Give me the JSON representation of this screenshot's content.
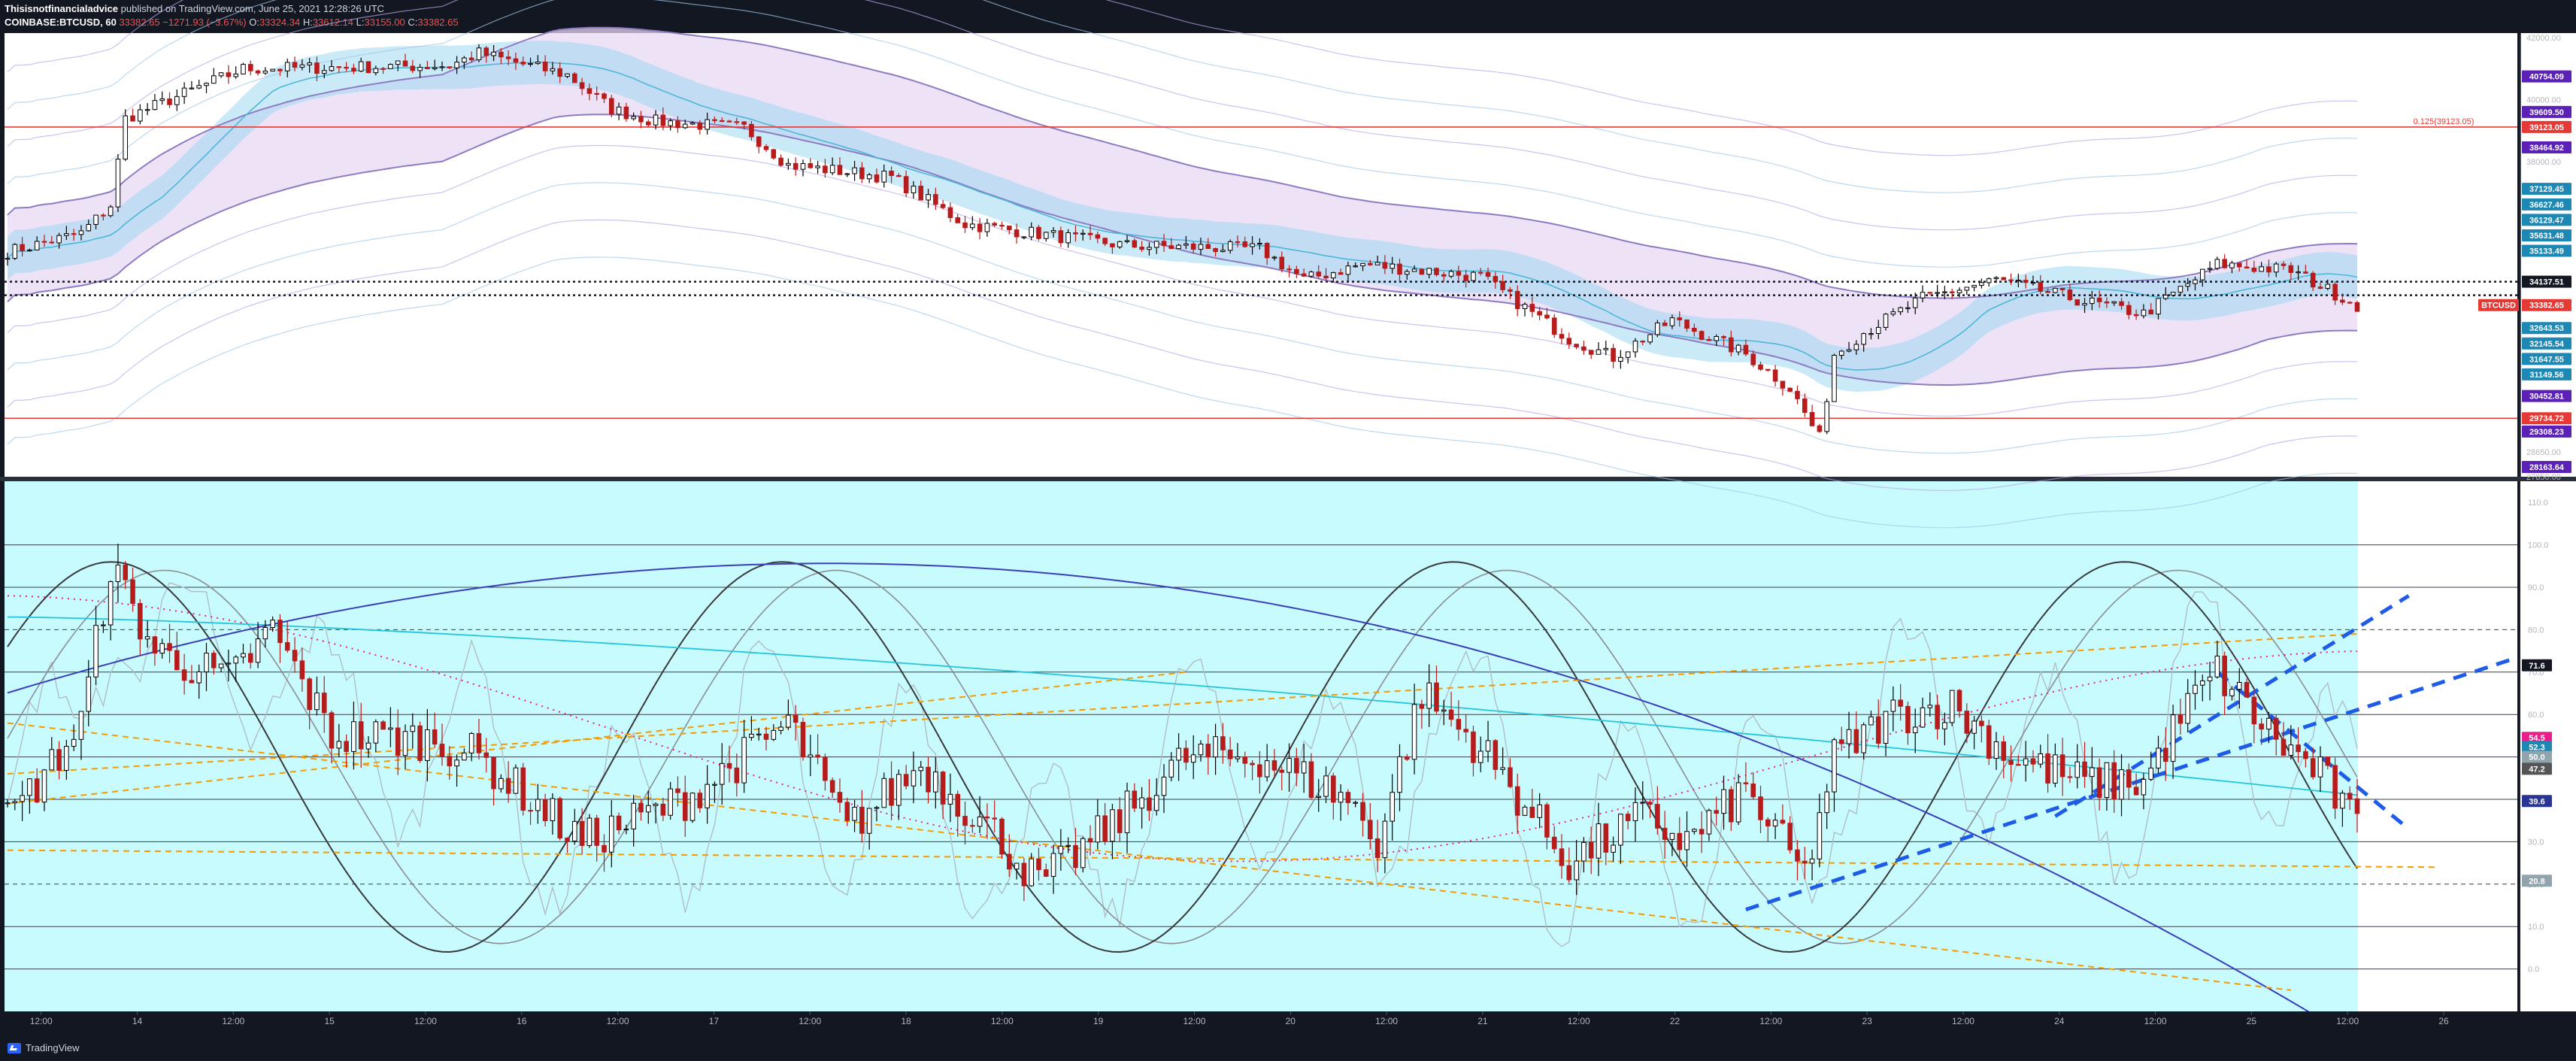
{
  "header": {
    "publisher": "Thisisnotfinancialadvice",
    "published_text": "published on TradingView.com, June 25, 2021 12:28:26 UTC",
    "symbol": "COINBASE:BTCUSD, 60",
    "last_price": "33382.65",
    "change": "−1271.93 (−3.67%)",
    "open_label": "O:",
    "open": "33324.34",
    "high_label": "H:",
    "high": "33612.14",
    "low_label": "L:",
    "low": "33155.00",
    "close_label": "C:",
    "close": "33382.65"
  },
  "footer": {
    "brand": "TradingView"
  },
  "colors": {
    "bg": "#131722",
    "upper_pane_bg": "#ffffff",
    "lower_pane_bg": "#c8fbfd",
    "up_candle": "#000000",
    "down_candle": "#b71c1c",
    "ribbon_fill": "#9fd8f0",
    "purple_band": "#e8d8f4",
    "red_hline": "#e53935",
    "orange_dash": "#f59b00",
    "blue_dash": "#1e5ce8",
    "navy_curve": "#3a3fb8"
  },
  "chart_data": [
    {
      "type": "candlestick",
      "pane": "price",
      "x_ticks": [
        "12:00",
        "14",
        "12:00",
        "15",
        "12:00",
        "16",
        "12:00",
        "17",
        "12:00",
        "18",
        "12:00",
        "19",
        "12:00",
        "20",
        "12:00",
        "21",
        "12:00",
        "22",
        "12:00",
        "23",
        "12:00",
        "24",
        "12:00",
        "25",
        "12:00",
        "26"
      ],
      "x_range_hours": [
        0,
        291
      ],
      "ylim": [
        27850,
        42150
      ],
      "y_ticks": [
        "42000.00",
        "40000.00",
        "38000.00",
        "28650.00",
        "27850.00"
      ],
      "symbol_label": "BTCUSD",
      "current_price": 33382.65,
      "close_keypoints": [
        [
          0,
          35100
        ],
        [
          10,
          35700
        ],
        [
          14,
          36600
        ],
        [
          16,
          39400
        ],
        [
          32,
          41000
        ],
        [
          60,
          41100
        ],
        [
          64,
          41500
        ],
        [
          76,
          40800
        ],
        [
          82,
          39700
        ],
        [
          88,
          39300
        ],
        [
          100,
          39100
        ],
        [
          106,
          37900
        ],
        [
          120,
          37500
        ],
        [
          130,
          36000
        ],
        [
          152,
          35300
        ],
        [
          170,
          35200
        ],
        [
          176,
          34200
        ],
        [
          184,
          34700
        ],
        [
          200,
          34300
        ],
        [
          212,
          32300
        ],
        [
          218,
          31700
        ],
        [
          226,
          32900
        ],
        [
          236,
          31800
        ],
        [
          242,
          30700
        ],
        [
          246,
          29100
        ],
        [
          248,
          31800
        ],
        [
          252,
          32500
        ],
        [
          260,
          33600
        ],
        [
          270,
          34200
        ],
        [
          282,
          33500
        ],
        [
          290,
          33100
        ],
        [
          300,
          34700
        ],
        [
          310,
          34500
        ],
        [
          319,
          33380
        ]
      ],
      "price_labels": [
        {
          "text": "40754.09",
          "value": 40754.09,
          "color": "#5b21b6"
        },
        {
          "text": "39609.50",
          "value": 39609.5,
          "color": "#5b21b6"
        },
        {
          "text": "39123.05",
          "value": 39123.05,
          "color": "#e53935"
        },
        {
          "text": "38464.92",
          "value": 38464.92,
          "color": "#5b21b6"
        },
        {
          "text": "37129.45",
          "value": 37129.45,
          "color": "#1e88b4"
        },
        {
          "text": "36627.46",
          "value": 36627.46,
          "color": "#1e88b4"
        },
        {
          "text": "36129.47",
          "value": 36129.47,
          "color": "#1e88b4"
        },
        {
          "text": "35631.48",
          "value": 35631.48,
          "color": "#1e88b4"
        },
        {
          "text": "35133.49",
          "value": 35133.49,
          "color": "#1e88b4"
        },
        {
          "text": "34137.51",
          "value": 34137.51,
          "color": "#131722"
        },
        {
          "text": "33382.65",
          "value": 33382.65,
          "color": "#e53935"
        },
        {
          "text": "32643.53",
          "value": 32643.53,
          "color": "#1e88b4"
        },
        {
          "text": "32145.54",
          "value": 32145.54,
          "color": "#1e88b4"
        },
        {
          "text": "31647.55",
          "value": 31647.55,
          "color": "#1e88b4"
        },
        {
          "text": "31149.56",
          "value": 31149.56,
          "color": "#1e88b4"
        },
        {
          "text": "30452.81",
          "value": 30452.81,
          "color": "#5b21b6"
        },
        {
          "text": "29734.72",
          "value": 29734.72,
          "color": "#e53935"
        },
        {
          "text": "29308.23",
          "value": 29308.23,
          "color": "#5b21b6"
        },
        {
          "text": "28163.64",
          "value": 28163.64,
          "color": "#5b21b6"
        }
      ],
      "annotation": {
        "text": "0.125(39123.05)",
        "value": 39123.05
      },
      "horizontal_lines": [
        {
          "value": 39123.05,
          "style": "solid",
          "color": "#e53935"
        },
        {
          "value": 29734.72,
          "style": "solid",
          "color": "#e53935"
        },
        {
          "value": 34137.51,
          "style": "dotted",
          "color": "#131722"
        },
        {
          "value": 33700,
          "style": "dotted",
          "color": "#131722"
        }
      ]
    },
    {
      "type": "oscillator",
      "pane": "indicator",
      "ylim": [
        -10,
        115
      ],
      "y_ticks": [
        "110.0",
        "100.0",
        "90.0",
        "80.0",
        "70.0",
        "60.0",
        "50.0",
        "40.0",
        "30.0",
        "20.0",
        "10.0",
        "0.0"
      ],
      "levels": [
        {
          "value": 100,
          "style": "solid"
        },
        {
          "value": 90,
          "style": "solid"
        },
        {
          "value": 80,
          "style": "dashed"
        },
        {
          "value": 70,
          "style": "solid"
        },
        {
          "value": 60,
          "style": "solid"
        },
        {
          "value": 50,
          "style": "solid"
        },
        {
          "value": 40,
          "style": "solid"
        },
        {
          "value": 30,
          "style": "solid"
        },
        {
          "value": 20,
          "style": "dashed"
        },
        {
          "value": 10,
          "style": "solid"
        },
        {
          "value": 0,
          "style": "solid"
        }
      ],
      "value_labels": [
        {
          "text": "71.6",
          "value": 71.6,
          "color": "#131722"
        },
        {
          "text": "54.5",
          "value": 54.5,
          "color": "#e91e8c"
        },
        {
          "text": "52.3",
          "value": 52.3,
          "color": "#1e88b4"
        },
        {
          "text": "50.0",
          "value": 50.0,
          "color": "#90a4ae"
        },
        {
          "text": "47.2",
          "value": 47.2,
          "color": "#555555"
        },
        {
          "text": "39.6",
          "value": 39.6,
          "color": "#283593"
        },
        {
          "text": "20.8",
          "value": 20.8,
          "color": "#90a4ae"
        }
      ],
      "rsi_keypoints": [
        [
          0,
          35
        ],
        [
          6,
          48
        ],
        [
          10,
          58
        ],
        [
          14,
          95
        ],
        [
          20,
          75
        ],
        [
          30,
          68
        ],
        [
          36,
          80
        ],
        [
          44,
          55
        ],
        [
          58,
          54
        ],
        [
          64,
          50
        ],
        [
          78,
          30
        ],
        [
          92,
          40
        ],
        [
          100,
          50
        ],
        [
          106,
          58
        ],
        [
          114,
          33
        ],
        [
          124,
          48
        ],
        [
          134,
          32
        ],
        [
          140,
          20
        ],
        [
          150,
          34
        ],
        [
          160,
          50
        ],
        [
          170,
          50
        ],
        [
          182,
          40
        ],
        [
          186,
          30
        ],
        [
          192,
          65
        ],
        [
          200,
          52
        ],
        [
          212,
          25
        ],
        [
          222,
          36
        ],
        [
          228,
          30
        ],
        [
          236,
          42
        ],
        [
          244,
          22
        ],
        [
          248,
          50
        ],
        [
          256,
          60
        ],
        [
          264,
          62
        ],
        [
          272,
          50
        ],
        [
          282,
          44
        ],
        [
          290,
          44
        ],
        [
          296,
          62
        ],
        [
          300,
          70
        ],
        [
          308,
          54
        ],
        [
          314,
          46
        ],
        [
          319,
          33
        ]
      ],
      "trendlines": [
        {
          "color": "#f59b00",
          "style": "dashed",
          "from": [
            0,
            39
          ],
          "to": [
            160,
            70
          ]
        },
        {
          "color": "#f59b00",
          "style": "dashed",
          "from": [
            0,
            46
          ],
          "to": [
            319,
            79
          ]
        },
        {
          "color": "#f59b00",
          "style": "dashed",
          "from": [
            0,
            58
          ],
          "to": [
            310,
            -5
          ]
        },
        {
          "color": "#f59b00",
          "style": "dashed",
          "from": [
            0,
            28
          ],
          "to": [
            330,
            24
          ]
        },
        {
          "color": "#1e5ce8",
          "style": "dashed",
          "from": [
            236,
            14
          ],
          "to": [
            340,
            73
          ]
        },
        {
          "color": "#1e5ce8",
          "style": "dashed",
          "from": [
            278,
            36
          ],
          "to": [
            326,
            88
          ]
        },
        {
          "color": "#1e5ce8",
          "style": "dashed",
          "from": [
            300,
            70
          ],
          "to": [
            326,
            33
          ]
        }
      ]
    }
  ]
}
